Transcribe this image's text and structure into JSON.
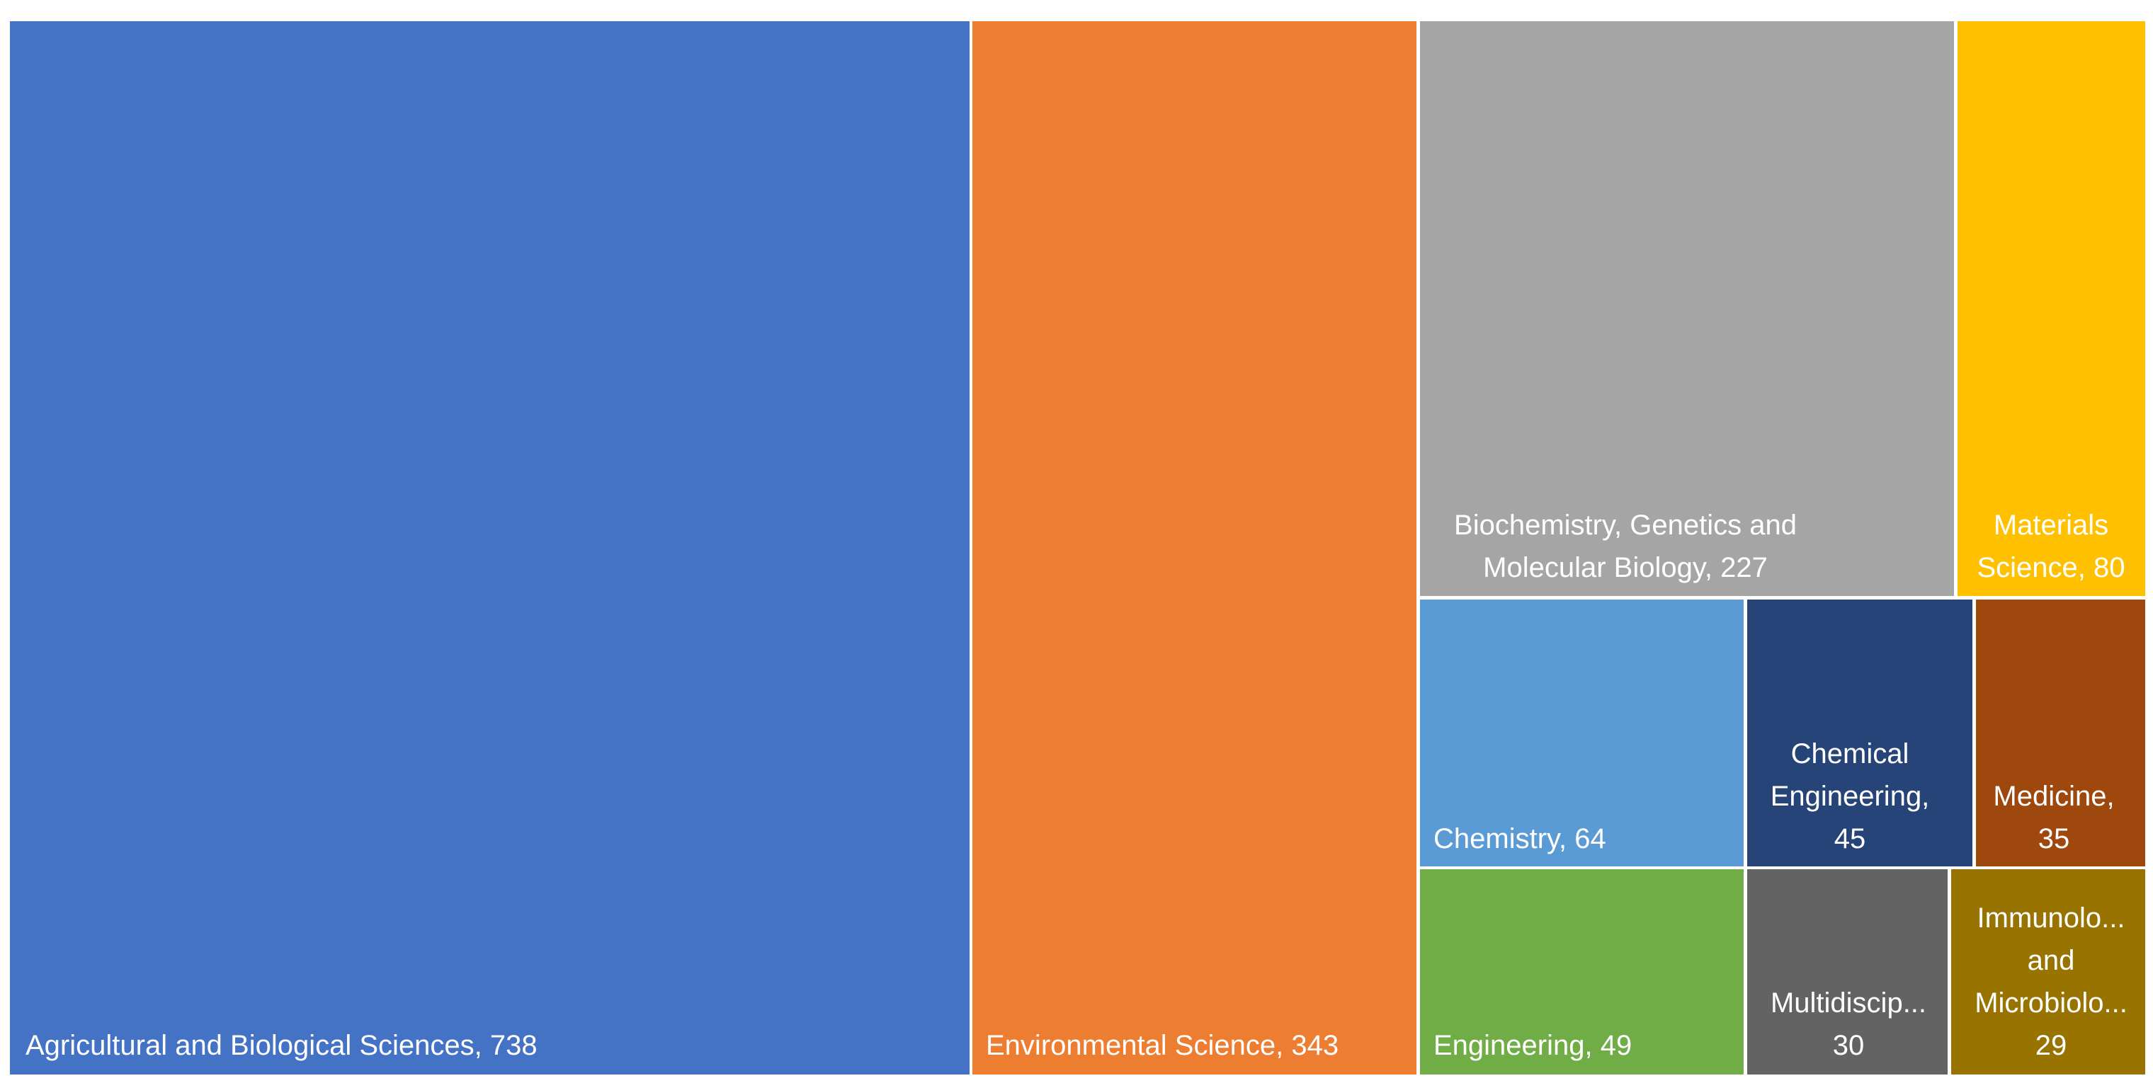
{
  "chart_data": {
    "type": "treemap",
    "title": "",
    "items": [
      {
        "name": "Agricultural and Biological Sciences",
        "value": 738,
        "color": "#4472C4",
        "label_lines": [
          "Agricultural and Biological Sciences, 738"
        ]
      },
      {
        "name": "Environmental Science",
        "value": 343,
        "color": "#ED7D31",
        "label_lines": [
          "Environmental Science, 343"
        ]
      },
      {
        "name": "Biochemistry, Genetics and Molecular Biology",
        "value": 227,
        "color": "#A5A5A5",
        "label_lines": [
          "Biochemistry, Genetics and",
          "Molecular Biology, 227"
        ]
      },
      {
        "name": "Materials Science",
        "value": 80,
        "color": "#FFC000",
        "label_lines": [
          "Materials",
          "Science, 80"
        ]
      },
      {
        "name": "Chemistry",
        "value": 64,
        "color": "#5B9BD5",
        "label_lines": [
          "Chemistry, 64"
        ]
      },
      {
        "name": "Chemical Engineering",
        "value": 45,
        "color": "#264478",
        "label_lines": [
          "Chemical",
          "Engineering,",
          "45"
        ]
      },
      {
        "name": "Medicine",
        "value": 35,
        "color": "#9E480E",
        "label_lines": [
          "Medicine,",
          "35"
        ]
      },
      {
        "name": "Engineering",
        "value": 49,
        "color": "#70AD47",
        "label_lines": [
          "Engineering, 49"
        ]
      },
      {
        "name": "Multidiscip...",
        "value": 30,
        "color": "#636363",
        "label_lines": [
          "Multidiscip...",
          "30"
        ]
      },
      {
        "name": "Immunology and Microbiology",
        "value": 29,
        "color": "#997300",
        "label_lines": [
          "Immunolo...",
          "and",
          "Microbiolo...",
          "29"
        ]
      }
    ]
  }
}
